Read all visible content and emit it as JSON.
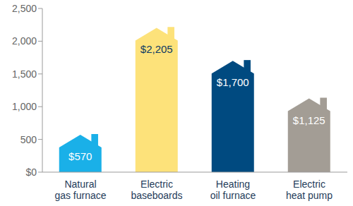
{
  "chart_data": {
    "type": "bar",
    "categories": [
      "Natural gas furnace",
      "Electric baseboards",
      "Heating oil furnace",
      "Electric heat pump"
    ],
    "values": [
      570,
      2205,
      1700,
      1125
    ],
    "value_labels": [
      "$570",
      "$2,205",
      "$1,700",
      "$1,125"
    ],
    "colors": [
      "#1ab0e8",
      "#fde27a",
      "#004a80",
      "#a39d95"
    ],
    "ylim": [
      0,
      2500
    ],
    "yticks": [
      {
        "value": 0,
        "label": "$0"
      },
      500,
      {
        "value": 1000,
        "label": "1,000"
      },
      {
        "value": 1500,
        "label": "1,500"
      },
      {
        "value": 2000,
        "label": "2,000"
      },
      {
        "value": 2500,
        "label": "2,500"
      }
    ],
    "grid": false,
    "data_labels": true
  }
}
